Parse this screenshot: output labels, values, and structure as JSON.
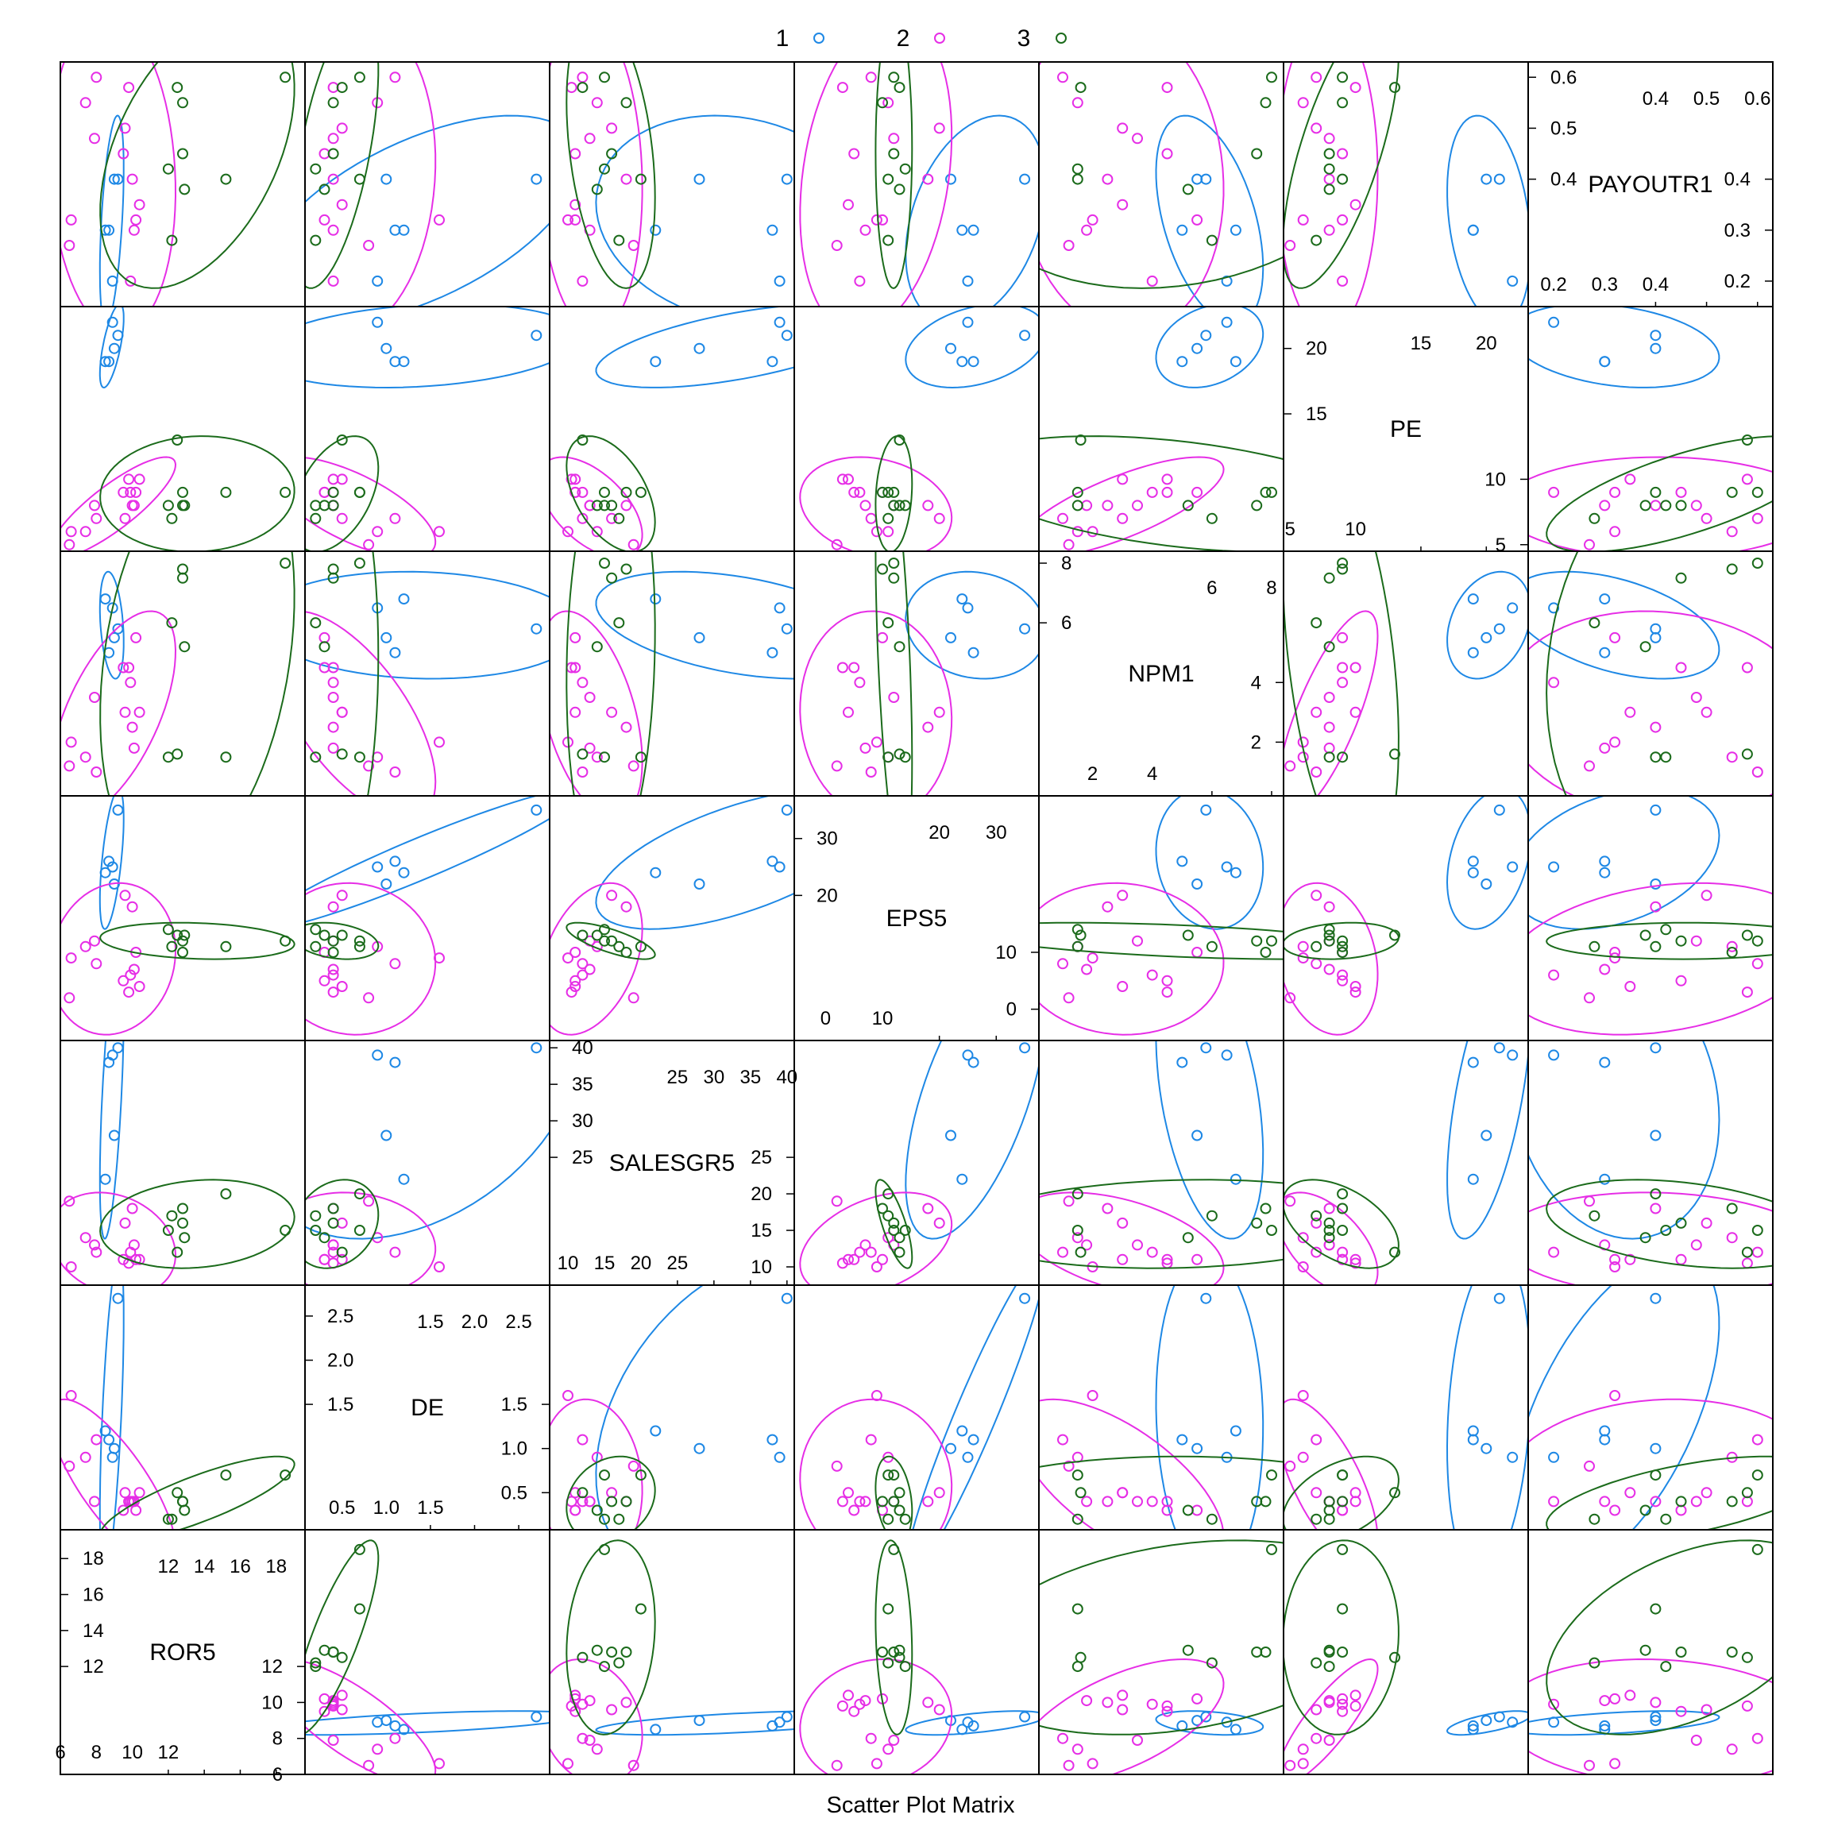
{
  "chart_data": {
    "type": "scatter",
    "xlabel": "Scatter Plot Matrix",
    "colors": {
      "1": "#1e88e5",
      "2": "#e62ee6",
      "3": "#1b6b1b"
    },
    "variables": [
      {
        "name": "PAYOUTR1",
        "range": [
          0.15,
          0.63
        ]
      },
      {
        "name": "PE",
        "range": [
          4.5,
          23.2
        ]
      },
      {
        "name": "NPM1",
        "range": [
          0.2,
          8.4
        ]
      },
      {
        "name": "EPS5",
        "range": [
          -5.5,
          37.5
        ]
      },
      {
        "name": "SALESGR5",
        "range": [
          7.5,
          41.0
        ]
      },
      {
        "name": "DE",
        "range": [
          0.08,
          2.85
        ]
      },
      {
        "name": "ROR5",
        "range": [
          6.0,
          19.6
        ]
      }
    ],
    "diag_ticks": [
      {
        "bl": [
          "0.2",
          "0.3",
          "0.4"
        ],
        "tr": [
          "0.4",
          "0.5",
          "0.6"
        ],
        "left": [
          "0.2",
          "0.3",
          "0.4"
        ],
        "right": [
          "0.4",
          "0.5",
          "0.6"
        ],
        "tl_vals": [
          0.4,
          0.5,
          0.6
        ],
        "br_vals": [
          0.2,
          0.3,
          0.4
        ]
      },
      {
        "bl": [
          "5",
          "10"
        ],
        "tr": [
          "15",
          "20"
        ],
        "left": [
          "5",
          "10"
        ],
        "right": [
          "15",
          "20"
        ],
        "tl_vals": [
          15,
          20
        ],
        "br_vals": [
          5,
          10
        ]
      },
      {
        "bl": [
          "2",
          "4"
        ],
        "tr": [
          "6",
          "8"
        ],
        "left": [
          "2",
          "4"
        ],
        "right": [
          "6",
          "8"
        ],
        "tl_vals": [
          6,
          8
        ],
        "br_vals": [
          2,
          4
        ]
      },
      {
        "bl": [
          "0",
          "10"
        ],
        "tr": [
          "20",
          "30"
        ],
        "left": [
          "0",
          "10"
        ],
        "right": [
          "20",
          "30"
        ],
        "tl_vals": [
          20,
          30
        ],
        "br_vals": [
          0,
          10
        ]
      },
      {
        "bl": [
          "10",
          "15",
          "20",
          "25"
        ],
        "tr": [
          "25",
          "30",
          "35",
          "40"
        ],
        "left": [
          "10",
          "15",
          "20",
          "25"
        ],
        "right": [
          "25",
          "30",
          "35",
          "40"
        ],
        "tl_vals": [
          25,
          30,
          35,
          40
        ],
        "br_vals": [
          10,
          15,
          20,
          25
        ]
      },
      {
        "bl": [
          "0.5",
          "1.0",
          "1.5"
        ],
        "tr": [
          "1.5",
          "2.0",
          "2.5"
        ],
        "left": [
          "0.5",
          "1.0",
          "1.5"
        ],
        "right": [
          "1.5",
          "2.0",
          "2.5"
        ],
        "tl_vals": [
          1.5,
          2.0,
          2.5
        ],
        "br_vals": [
          0.5,
          1.0,
          1.5
        ]
      },
      {
        "bl": [
          "6",
          "8",
          "10",
          "12"
        ],
        "tr": [
          "12",
          "14",
          "16",
          "18"
        ],
        "left": [
          "6",
          "8",
          "10",
          "12"
        ],
        "right": [
          "12",
          "14",
          "16",
          "18"
        ],
        "tl_vals": [
          12,
          14,
          16,
          18
        ],
        "br_vals": [
          6,
          8,
          10,
          12
        ]
      }
    ],
    "groups": [
      {
        "name": "1",
        "points": [
          [
            0.4,
            21.0,
            5.8,
            35.0,
            40.0,
            2.7,
            9.2
          ],
          [
            0.3,
            19.0,
            6.8,
            24.0,
            22.0,
            1.2,
            8.5
          ],
          [
            0.3,
            19.0,
            5.0,
            26.0,
            38.0,
            1.1,
            8.7
          ],
          [
            0.4,
            20.0,
            5.5,
            22.0,
            28.0,
            1.0,
            9.0
          ],
          [
            0.2,
            22.0,
            6.5,
            25.0,
            39.0,
            0.9,
            8.9
          ]
        ]
      },
      {
        "name": "2",
        "points": [
          [
            0.4,
            8.0,
            2.5,
            18.0,
            18.0,
            0.4,
            10.0
          ],
          [
            0.5,
            7.0,
            3.0,
            20.0,
            16.0,
            0.5,
            9.6
          ],
          [
            0.3,
            8.0,
            1.8,
            7.0,
            13.0,
            0.4,
            10.1
          ],
          [
            0.45,
            9.0,
            4.5,
            5.0,
            11.0,
            0.3,
            9.5
          ],
          [
            0.35,
            10.0,
            3.0,
            4.0,
            11.0,
            0.5,
            10.4
          ],
          [
            0.6,
            7.0,
            1.0,
            8.0,
            12.0,
            1.1,
            8.0
          ],
          [
            0.55,
            6.0,
            1.5,
            11.0,
            14.0,
            0.9,
            7.4
          ],
          [
            0.2,
            9.0,
            4.0,
            6.0,
            12.0,
            0.4,
            9.9
          ],
          [
            0.32,
            6.0,
            2.0,
            9.0,
            10.0,
            1.6,
            6.6
          ],
          [
            0.58,
            10.0,
            4.5,
            3.0,
            10.5,
            0.4,
            9.8
          ],
          [
            0.48,
            8.0,
            3.5,
            12.0,
            13.0,
            0.4,
            7.9
          ],
          [
            0.27,
            5.0,
            1.2,
            2.0,
            19.0,
            0.8,
            6.5
          ],
          [
            0.32,
            9.0,
            5.5,
            10.0,
            11.0,
            0.3,
            10.2
          ]
        ]
      },
      {
        "name": "3",
        "points": [
          [
            0.6,
            9.0,
            8.0,
            12.0,
            15.0,
            0.7,
            18.5
          ],
          [
            0.28,
            7.0,
            6.0,
            11.0,
            17.0,
            0.2,
            12.2
          ],
          [
            0.4,
            9.0,
            1.5,
            11.0,
            20.0,
            0.7,
            15.2
          ],
          [
            0.45,
            8.0,
            7.5,
            12.0,
            16.0,
            0.4,
            12.8
          ],
          [
            0.38,
            8.0,
            5.2,
            13.0,
            14.0,
            0.3,
            12.9
          ],
          [
            0.58,
            13.0,
            1.6,
            13.0,
            12.0,
            0.5,
            12.5
          ],
          [
            0.55,
            9.0,
            7.8,
            10.0,
            18.0,
            0.4,
            12.8
          ],
          [
            0.42,
            8.0,
            1.5,
            14.0,
            15.0,
            0.2,
            12.0
          ]
        ]
      }
    ]
  },
  "legend": {
    "labels": [
      "1",
      "2",
      "3"
    ]
  },
  "footer": {
    "xlabel": "Scatter Plot Matrix"
  }
}
